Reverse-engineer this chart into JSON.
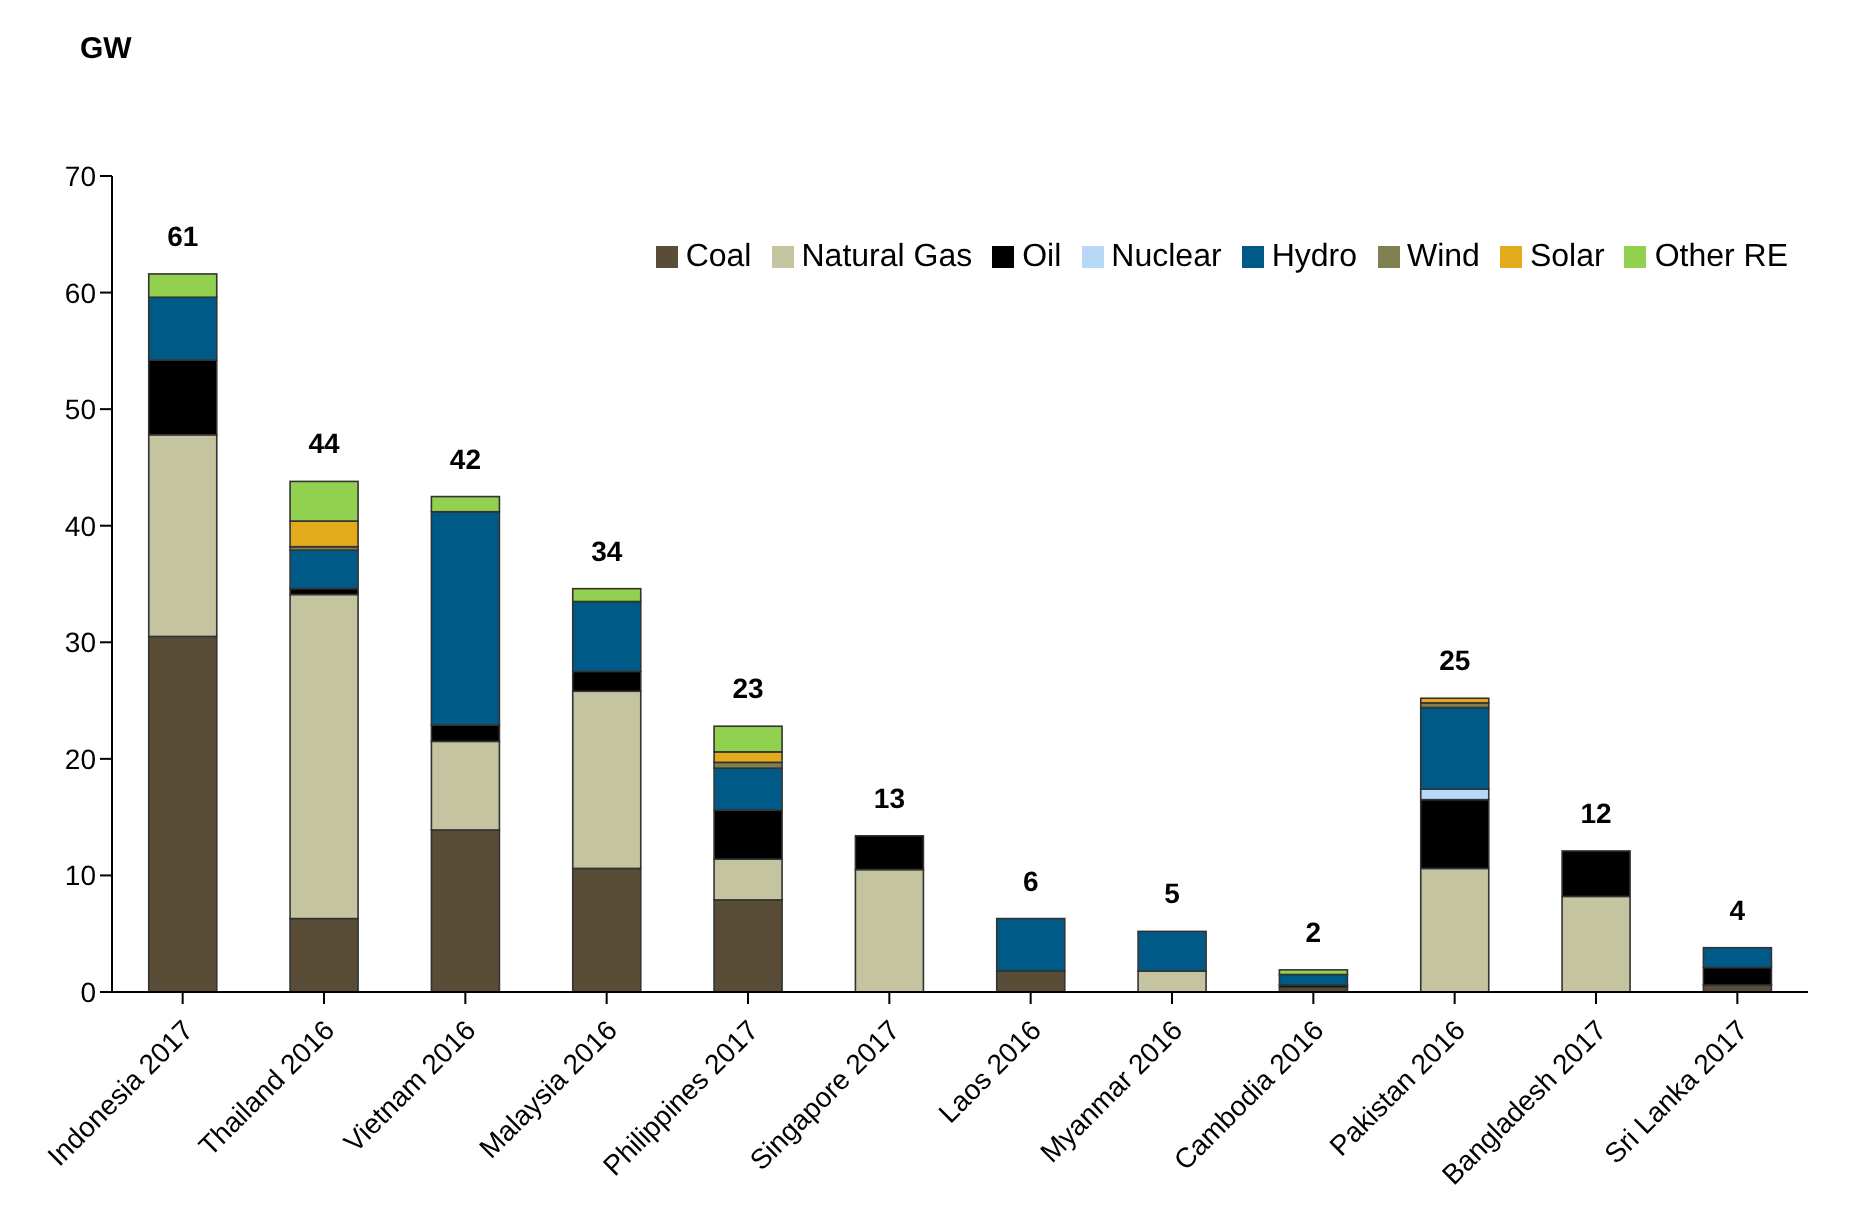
{
  "chart_data": {
    "type": "bar",
    "stacked": true,
    "ylabel": "GW",
    "categories": [
      "Indonesia 2017",
      "Thailand 2016",
      "Vietnam 2016",
      "Malaysia 2016",
      "Philippines 2017",
      "Singapore 2017",
      "Laos 2016",
      "Myanmar 2016",
      "Cambodia 2016",
      "Pakistan 2016",
      "Bangladesh 2017",
      "Sri Lanka 2017"
    ],
    "series": [
      {
        "name": "Coal",
        "color": "#5a4d37",
        "values": [
          30.5,
          6.3,
          13.9,
          10.6,
          7.9,
          0,
          1.8,
          0,
          0.4,
          0,
          null,
          0.6
        ]
      },
      {
        "name": "Natural Gas",
        "color": "#c4c4a0",
        "values": [
          17.3,
          27.8,
          7.6,
          15.2,
          3.5,
          10.5,
          0,
          1.8,
          0,
          10.6,
          8.2,
          0
        ]
      },
      {
        "name": "Oil",
        "color": "#000000",
        "values": [
          6.4,
          0.5,
          1.4,
          1.7,
          4.2,
          2.9,
          0,
          0,
          0.2,
          5.9,
          3.9,
          1.5
        ]
      },
      {
        "name": "Nuclear",
        "color": "#b8d8f8",
        "values": [
          0,
          0,
          0,
          0,
          0,
          0,
          0,
          0,
          0,
          0.9,
          0,
          0
        ]
      },
      {
        "name": "Hydro",
        "color": "#005a87",
        "values": [
          5.4,
          3.3,
          18.3,
          6.0,
          3.6,
          0,
          4.5,
          3.4,
          0.9,
          7.0,
          0,
          1.7
        ]
      },
      {
        "name": "Wind",
        "color": "#7f7f50",
        "values": [
          0,
          0.3,
          0,
          0,
          0.5,
          0,
          0,
          0,
          0,
          0.4,
          0,
          0
        ]
      },
      {
        "name": "Solar",
        "color": "#e3aa1b",
        "values": [
          0,
          2.2,
          0,
          0,
          0.9,
          0,
          0,
          0,
          0,
          0.4,
          0,
          0
        ]
      },
      {
        "name": "Other RE",
        "color": "#92d050",
        "values": [
          2.0,
          3.4,
          1.3,
          1.1,
          2.2,
          0,
          0,
          0,
          0.4,
          0,
          0,
          0
        ]
      }
    ],
    "totals": [
      "61",
      "44",
      "42",
      "34",
      "23",
      "13",
      "6",
      "5",
      "2",
      "25",
      "12",
      "4"
    ],
    "ylim": [
      0,
      70
    ],
    "yticks": [
      0,
      10,
      20,
      30,
      40,
      50,
      60,
      70
    ],
    "grid": false,
    "legend": "top right"
  }
}
